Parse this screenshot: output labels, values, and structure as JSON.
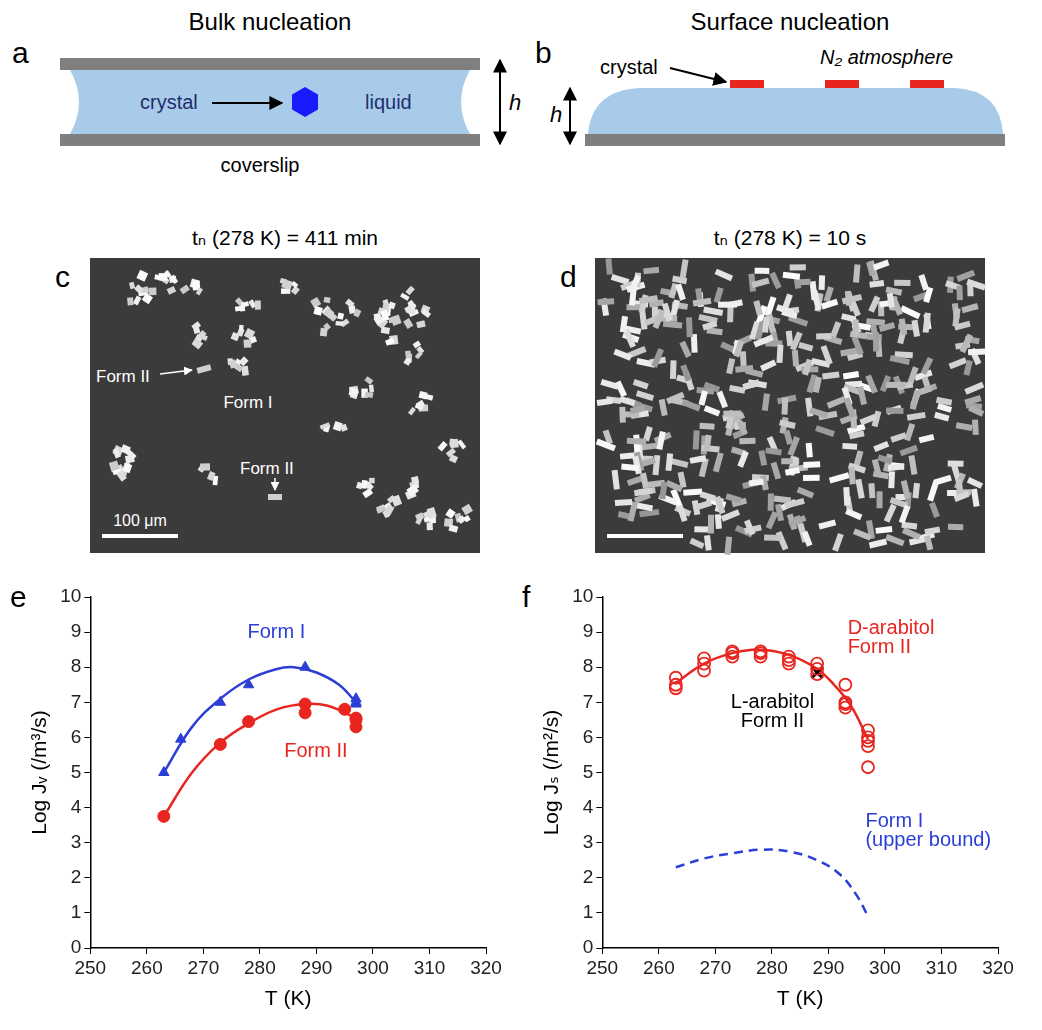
{
  "diagrams": {
    "a": {
      "letter": "a",
      "title": "Bulk nucleation",
      "crystal": "crystal",
      "liquid": "liquid",
      "substrate": "coverslip",
      "height": "h"
    },
    "b": {
      "letter": "b",
      "title": "Surface nucleation",
      "crystal": "crystal",
      "atmosphere": "N₂ atmosphere",
      "height": "h"
    }
  },
  "micrographs": {
    "c": {
      "letter": "c",
      "caption": "tₙ (278 K) = 411 min",
      "labels": [
        "Form II",
        "Form I",
        "Form II"
      ],
      "scale_bar": "100 μm"
    },
    "d": {
      "letter": "d",
      "caption": "tₙ (278 K) = 10 s"
    }
  },
  "chart_data": [
    {
      "type": "scatter",
      "letter": "e",
      "x_label": "T (K)",
      "y_label": "Log Jᵥ (/m³/s)",
      "xlim": [
        250,
        320
      ],
      "xticks": [
        250,
        260,
        270,
        280,
        290,
        300,
        310,
        320
      ],
      "ylim": [
        0,
        10
      ],
      "yticks": [
        0,
        1,
        2,
        3,
        4,
        5,
        6,
        7,
        8,
        9,
        10
      ],
      "grid": false,
      "series": [
        {
          "type": "line",
          "color": "#2b3fd6",
          "line_style": "solid",
          "x": [
            263,
            268,
            273,
            278,
            283,
            286,
            290,
            294,
            297
          ],
          "values": [
            5.0,
            6.3,
            7.1,
            7.65,
            7.95,
            8.0,
            7.85,
            7.5,
            7.0
          ]
        },
        {
          "type": "line",
          "color": "#e8251f",
          "line_style": "solid",
          "x": [
            263,
            268,
            273,
            278,
            283,
            288,
            292,
            297
          ],
          "values": [
            3.75,
            5.0,
            5.85,
            6.4,
            6.8,
            6.95,
            6.9,
            6.55
          ]
        },
        {
          "type": "scatter",
          "color": "#2b3fd6",
          "marker": "triangle",
          "x": [
            263,
            266,
            273,
            278,
            288,
            297,
            297,
            297
          ],
          "values": [
            5.0,
            5.95,
            7.0,
            7.5,
            8.0,
            7.1,
            6.95,
            7.0
          ]
        },
        {
          "type": "scatter",
          "color": "#e8251f",
          "marker": "circle",
          "x": [
            263,
            273,
            278,
            288,
            288,
            295,
            297,
            297,
            297
          ],
          "values": [
            3.75,
            5.8,
            6.45,
            6.95,
            6.7,
            6.8,
            6.55,
            6.3,
            6.5
          ]
        }
      ],
      "annotations": [
        {
          "text": "Form I",
          "color": "#2b3fd6"
        },
        {
          "text": "Form II",
          "color": "#e8251f"
        }
      ]
    },
    {
      "type": "scatter",
      "letter": "f",
      "x_label": "T (K)",
      "y_label": "Log Jₛ (/m²/s)",
      "xlim": [
        250,
        320
      ],
      "xticks": [
        250,
        260,
        270,
        280,
        290,
        300,
        310,
        320
      ],
      "ylim": [
        0,
        10
      ],
      "yticks": [
        0,
        1,
        2,
        3,
        4,
        5,
        6,
        7,
        8,
        9,
        10
      ],
      "grid": false,
      "series": [
        {
          "type": "line",
          "color": "#e8251f",
          "line_style": "solid",
          "x": [
            263,
            268,
            273,
            278,
            283,
            288,
            291,
            294,
            297
          ],
          "values": [
            7.55,
            8.1,
            8.4,
            8.5,
            8.35,
            7.95,
            7.5,
            6.9,
            5.95
          ]
        },
        {
          "type": "line",
          "color": "#2b3fd6",
          "line_style": "dashed",
          "x": [
            263,
            268,
            273,
            278,
            283,
            288,
            292,
            295,
            297
          ],
          "values": [
            2.3,
            2.55,
            2.7,
            2.8,
            2.75,
            2.5,
            2.1,
            1.5,
            0.9
          ]
        },
        {
          "type": "scatter",
          "color": "#e8251f",
          "marker": "open_circle",
          "x": [
            263,
            263,
            263,
            268,
            268,
            268,
            273,
            273,
            273,
            278,
            278,
            278,
            283,
            283,
            283,
            288,
            288,
            288,
            293,
            293,
            293,
            293,
            297,
            297,
            297,
            297,
            297
          ],
          "values": [
            7.4,
            7.5,
            7.7,
            7.9,
            8.1,
            8.25,
            8.3,
            8.4,
            8.45,
            8.3,
            8.4,
            8.45,
            8.1,
            8.2,
            8.3,
            7.8,
            7.95,
            8.1,
            6.85,
            6.95,
            7.0,
            7.5,
            5.15,
            5.75,
            5.9,
            6.0,
            6.2
          ]
        },
        {
          "type": "scatter",
          "color": "#000000",
          "marker": "cross",
          "x": [
            288
          ],
          "values": [
            7.85
          ]
        }
      ],
      "annotations": [
        {
          "text": "D-arabitol",
          "color": "#e8251f"
        },
        {
          "text": "Form II",
          "color": "#e8251f"
        },
        {
          "text": "L-arabitol",
          "color": "#000000"
        },
        {
          "text": "Form II",
          "color": "#000000"
        },
        {
          "text": "Form I",
          "color": "#2b3fd6"
        },
        {
          "text": "(upper bound)",
          "color": "#2b3fd6"
        }
      ]
    }
  ]
}
